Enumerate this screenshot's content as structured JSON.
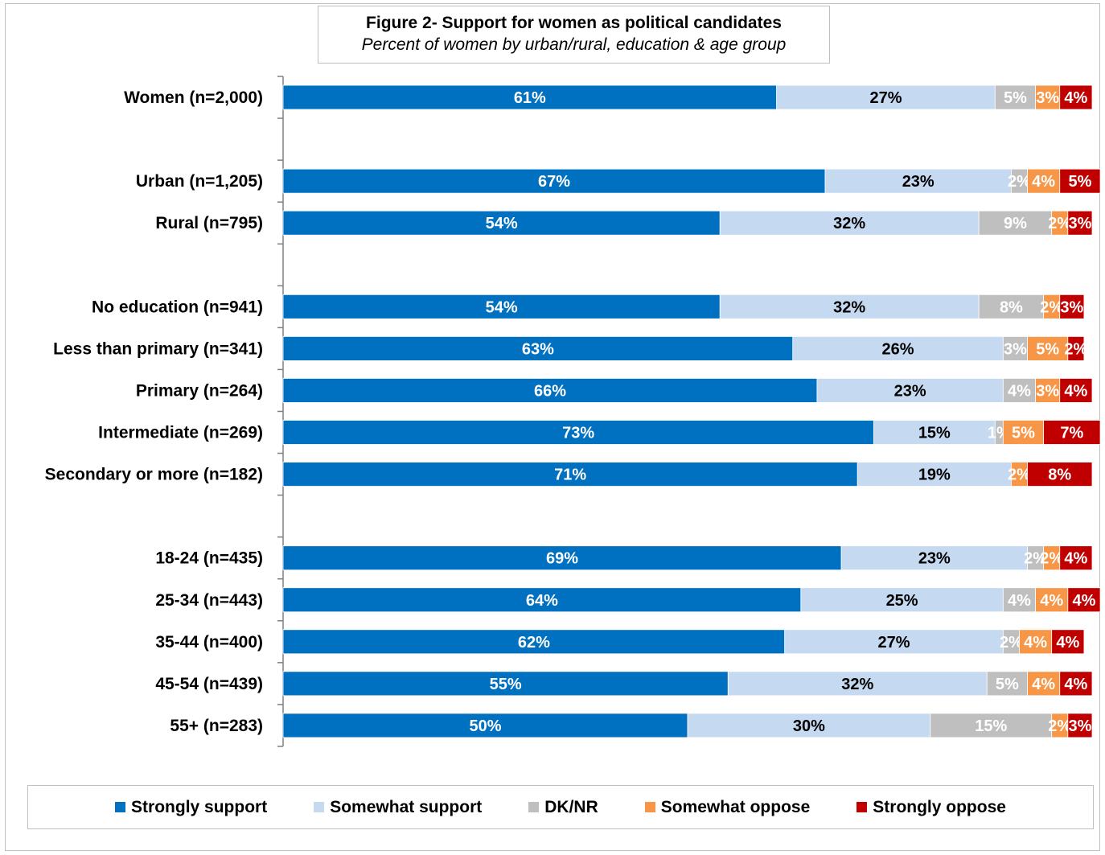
{
  "chart_data": {
    "type": "bar",
    "orientation": "horizontal",
    "stacked": true,
    "normalized_percent": true,
    "title": "Figure 2- Support for women as political candidates",
    "subtitle": "Percent of women by urban/rural, education & age group",
    "categories": [
      "Women (n=2,000)",
      "",
      "Urban (n=1,205)",
      "Rural (n=795)",
      "",
      "No education (n=941)",
      "Less than primary (n=341)",
      "Primary (n=264)",
      "Intermediate (n=269)",
      "Secondary or more (n=182)",
      "",
      "18-24 (n=435)",
      "25-34 (n=443)",
      "35-44 (n=400)",
      "45-54 (n=439)",
      "55+ (n=283)"
    ],
    "series": [
      {
        "name": "Strongly support",
        "color": "#0070c0",
        "label_color": "#ffffff",
        "values": [
          61,
          null,
          67,
          54,
          null,
          54,
          63,
          66,
          73,
          71,
          null,
          69,
          64,
          62,
          55,
          50
        ]
      },
      {
        "name": "Somewhat support",
        "color": "#c5d9f1",
        "label_color": "#000000",
        "values": [
          27,
          null,
          23,
          32,
          null,
          32,
          26,
          23,
          15,
          19,
          null,
          23,
          25,
          27,
          32,
          30
        ]
      },
      {
        "name": "DK/NR",
        "color": "#bfbfbf",
        "label_color": "#ffffff",
        "values": [
          5,
          null,
          2,
          9,
          null,
          8,
          3,
          4,
          1,
          0,
          null,
          2,
          4,
          2,
          5,
          15
        ]
      },
      {
        "name": "Somewhat oppose",
        "color": "#f79646",
        "label_color": "#ffffff",
        "values": [
          3,
          null,
          4,
          2,
          null,
          2,
          5,
          3,
          5,
          2,
          null,
          2,
          4,
          4,
          4,
          2
        ]
      },
      {
        "name": "Strongly oppose",
        "color": "#c00000",
        "label_color": "#ffffff",
        "values": [
          4,
          null,
          5,
          3,
          null,
          3,
          2,
          4,
          7,
          8,
          null,
          4,
          4,
          4,
          4,
          3
        ]
      }
    ],
    "xlim": [
      0,
      100
    ],
    "grid": false,
    "legend_position": "bottom"
  }
}
